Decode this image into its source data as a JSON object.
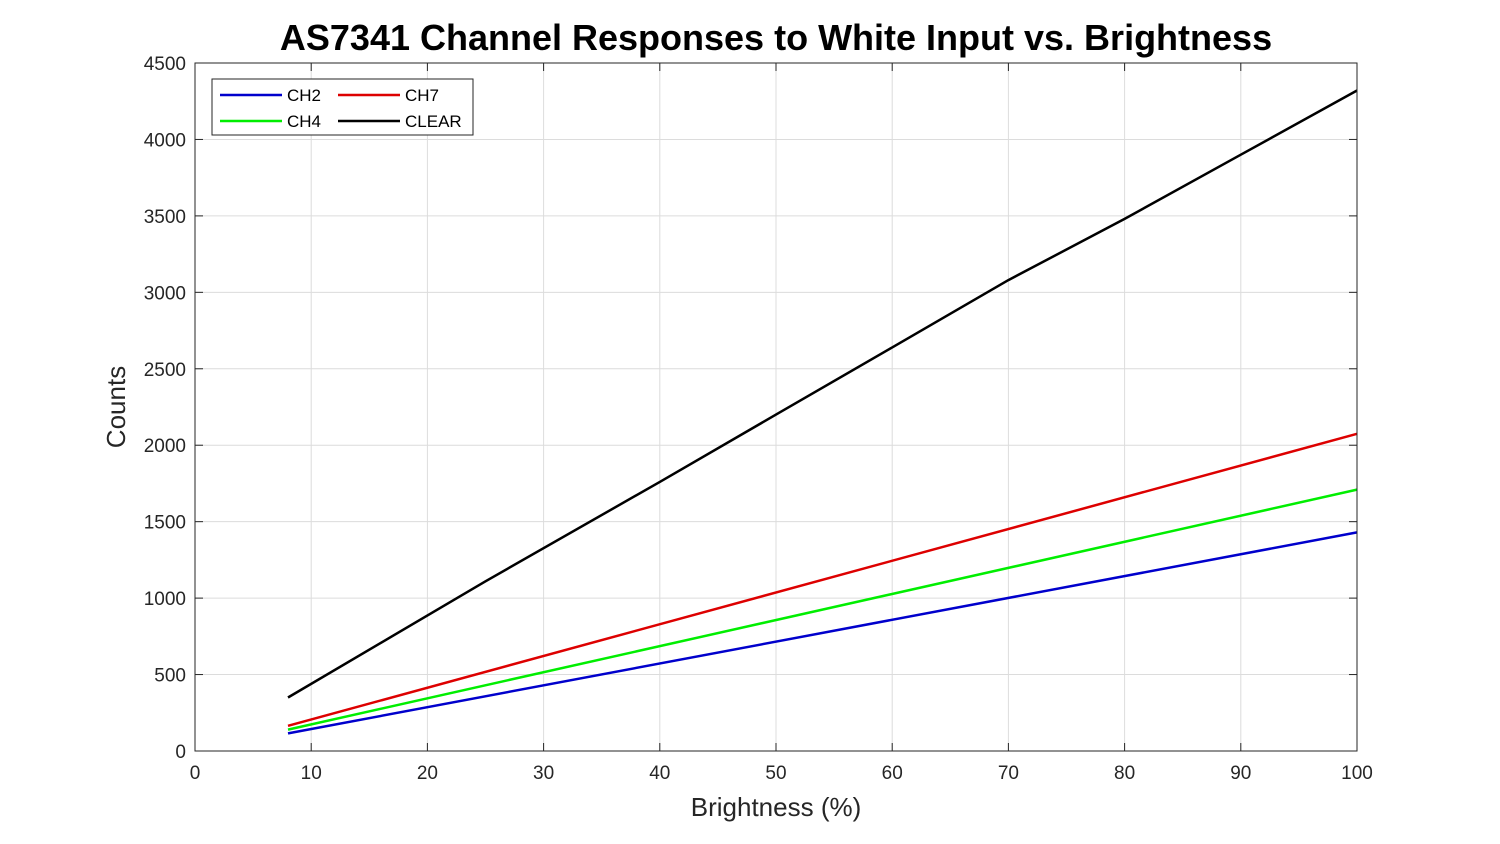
{
  "chart_data": {
    "type": "line",
    "title": "AS7341 Channel Responses to White Input vs. Brightness",
    "xlabel": "Brightness (%)",
    "ylabel": "Counts",
    "xlim": [
      0,
      100
    ],
    "ylim": [
      0,
      4500
    ],
    "xticks": [
      0,
      10,
      20,
      30,
      40,
      50,
      60,
      70,
      80,
      90,
      100
    ],
    "yticks": [
      0,
      500,
      1000,
      1500,
      2000,
      2500,
      3000,
      3500,
      4000,
      4500
    ],
    "grid": true,
    "legend_position": "top-left",
    "legend_columns": 2,
    "series": [
      {
        "name": "CH2",
        "color": "#0000cc",
        "x": [
          8,
          100
        ],
        "y": [
          115,
          1430
        ]
      },
      {
        "name": "CH4",
        "color": "#00ee00",
        "x": [
          8,
          100
        ],
        "y": [
          140,
          1710
        ]
      },
      {
        "name": "CH7",
        "color": "#dd0000",
        "x": [
          8,
          100
        ],
        "y": [
          165,
          2075
        ]
      },
      {
        "name": "CLEAR",
        "color": "#000000",
        "x": [
          8,
          25,
          40,
          50,
          60,
          70,
          80,
          90,
          100
        ],
        "y": [
          350,
          1110,
          1760,
          2200,
          2640,
          3080,
          3480,
          3900,
          4320
        ]
      }
    ]
  }
}
